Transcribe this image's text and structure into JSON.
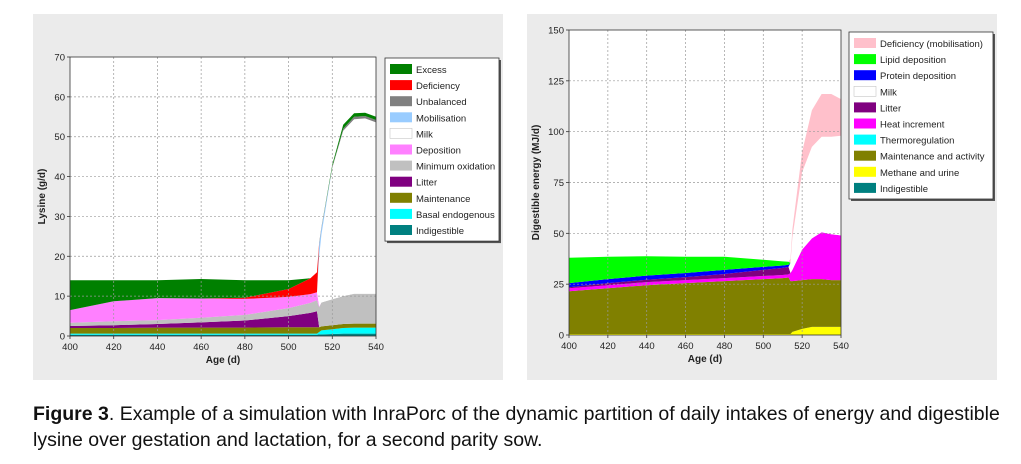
{
  "caption": {
    "label": "Figure 3",
    "text": ". Example of a simulation with InraPorc of the dynamic partition of daily intakes of energy and digestible lysine over gestation and lactation, for a second parity sow."
  },
  "chart_data": [
    {
      "type": "area",
      "stacked": true,
      "xlabel": "Age (d)",
      "ylabel": "Lysine (g/d)",
      "xlim": [
        400,
        540
      ],
      "ylim": [
        0,
        70
      ],
      "xticks": [
        400,
        420,
        440,
        460,
        480,
        500,
        520,
        540
      ],
      "yticks": [
        0,
        10,
        20,
        30,
        40,
        50,
        60,
        70
      ],
      "grid": true,
      "legend_position": "top-right",
      "x": [
        400,
        420,
        440,
        460,
        480,
        500,
        510,
        513,
        514,
        515,
        520,
        525,
        530,
        535,
        540
      ],
      "series": [
        {
          "name": "Indigestible",
          "color": "#008080",
          "values": [
            0.3,
            0.3,
            0.3,
            0.3,
            0.3,
            0.3,
            0.3,
            0.3,
            0.4,
            0.4,
            0.5,
            0.6,
            0.6,
            0.6,
            0.6
          ]
        },
        {
          "name": "Basal endogenous",
          "color": "#00ffff",
          "values": [
            0.3,
            0.3,
            0.3,
            0.3,
            0.3,
            0.3,
            0.3,
            0.3,
            0.6,
            1.0,
            1.2,
            1.4,
            1.5,
            1.5,
            1.5
          ]
        },
        {
          "name": "Maintenance",
          "color": "#808000",
          "values": [
            1.4,
            1.4,
            1.5,
            1.5,
            1.5,
            1.6,
            1.6,
            1.6,
            1.2,
            1.0,
            1.0,
            1.0,
            1.0,
            1.0,
            1.0
          ]
        },
        {
          "name": "Litter",
          "color": "#800080",
          "values": [
            0.5,
            0.7,
            0.9,
            1.3,
            1.8,
            2.8,
            3.6,
            4.0,
            0.0,
            0.0,
            0.0,
            0.0,
            0.0,
            0.0,
            0.0
          ]
        },
        {
          "name": "Minimum oxidation",
          "color": "#c0c0c0",
          "values": [
            0.8,
            1.0,
            1.0,
            1.2,
            1.4,
            2.0,
            2.5,
            2.8,
            5.0,
            6.0,
            6.5,
            7.0,
            7.5,
            7.5,
            7.5
          ]
        },
        {
          "name": "Deposition",
          "color": "#ff80ff",
          "values": [
            3.2,
            5.0,
            5.5,
            4.8,
            4.0,
            2.8,
            2.2,
            2.0,
            0.2,
            0.0,
            0.0,
            0.0,
            0.0,
            0.0,
            0.0
          ]
        },
        {
          "name": "Milk",
          "color": "#ffffff",
          "values": [
            0,
            0,
            0,
            0,
            0,
            0,
            0,
            0,
            12.6,
            17.0,
            33.0,
            41.5,
            43.8,
            44.0,
            43.0
          ]
        },
        {
          "name": "Mobilisation",
          "color": "#99ccff",
          "values": [
            0,
            0,
            0,
            0,
            0,
            0,
            0,
            0,
            3.0,
            1.6,
            0.0,
            0.0,
            0.0,
            0.0,
            0.0
          ]
        },
        {
          "name": "Unbalanced",
          "color": "#808080",
          "values": [
            0,
            0,
            0,
            0,
            0,
            0,
            0,
            0,
            0.5,
            0.3,
            0.3,
            0.5,
            0.6,
            0.6,
            0.6
          ]
        },
        {
          "name": "Deficiency",
          "color": "#ff0000",
          "values": [
            0,
            0,
            0,
            0,
            0.3,
            2.0,
            4.0,
            5.0,
            0.0,
            0.0,
            0.0,
            0.0,
            0.0,
            0.0,
            0.0
          ]
        },
        {
          "name": "Excess",
          "color": "#008000",
          "values": [
            7.5,
            5.3,
            4.5,
            4.9,
            4.4,
            2.2,
            0.0,
            0.0,
            0.0,
            0.0,
            0.5,
            1.0,
            0.9,
            0.8,
            0.8
          ]
        }
      ]
    },
    {
      "type": "area",
      "stacked": true,
      "xlabel": "Age (d)",
      "ylabel": "Digestible energy (MJ/d)",
      "xlim": [
        400,
        540
      ],
      "ylim": [
        0,
        150
      ],
      "xticks": [
        400,
        420,
        440,
        460,
        480,
        500,
        520,
        540
      ],
      "yticks": [
        0,
        25,
        50,
        75,
        100,
        125,
        150
      ],
      "grid": true,
      "legend_position": "top-right",
      "x": [
        400,
        420,
        440,
        460,
        480,
        500,
        510,
        513,
        514,
        515,
        520,
        525,
        530,
        535,
        540
      ],
      "series": [
        {
          "name": "Indigestible",
          "color": "#008080",
          "values": [
            0,
            0,
            0,
            0,
            0,
            0,
            0,
            0,
            0,
            0,
            0,
            0,
            0,
            0,
            0
          ]
        },
        {
          "name": "Methane and urine",
          "color": "#ffff00",
          "values": [
            0.5,
            0.5,
            0.5,
            0.5,
            0.5,
            0.5,
            0.5,
            0.5,
            0.5,
            1.5,
            3.0,
            4.0,
            4.0,
            4.0,
            4.0
          ]
        },
        {
          "name": "Maintenance and activity",
          "color": "#808000",
          "values": [
            21.0,
            22.5,
            24.0,
            25.0,
            26.0,
            27.0,
            27.5,
            27.8,
            26.0,
            25.0,
            24.0,
            23.5,
            23.5,
            23.0,
            23.0
          ]
        },
        {
          "name": "Thermoregulation",
          "color": "#00ffff",
          "values": [
            0,
            0,
            0,
            0,
            0,
            0,
            0,
            0,
            0,
            0,
            0,
            0,
            0,
            0,
            0
          ]
        },
        {
          "name": "Heat increment",
          "color": "#ff00ff",
          "values": [
            1.5,
            1.5,
            1.5,
            1.5,
            1.5,
            1.5,
            1.5,
            1.5,
            4.0,
            5.5,
            15.0,
            20.0,
            23.0,
            22.5,
            22.0
          ]
        },
        {
          "name": "Litter",
          "color": "#800080",
          "values": [
            0.5,
            1.0,
            1.2,
            1.5,
            2.0,
            3.0,
            3.5,
            3.7,
            0,
            0,
            0,
            0,
            0,
            0,
            0
          ]
        },
        {
          "name": "Milk",
          "color": "#ffffff",
          "values": [
            0,
            0,
            0,
            0,
            0,
            0,
            0,
            0,
            5.0,
            16.0,
            38.0,
            45.0,
            47.0,
            48.0,
            49.0
          ]
        },
        {
          "name": "Protein deposition",
          "color": "#0000ff",
          "values": [
            2.0,
            2.0,
            2.0,
            2.0,
            2.0,
            1.5,
            1.2,
            1.0,
            0,
            0,
            0,
            0,
            0,
            0,
            0
          ]
        },
        {
          "name": "Lipid deposition",
          "color": "#00ff00",
          "values": [
            12.5,
            11.0,
            9.5,
            8.0,
            6.5,
            3.5,
            2.0,
            1.5,
            0,
            0,
            0,
            0,
            0,
            0,
            0
          ]
        },
        {
          "name": "Deficiency (mobilisation)",
          "color": "#ffc0cb",
          "values": [
            0,
            0,
            0,
            0,
            0,
            0,
            0,
            0,
            2.0,
            4.0,
            10.0,
            18.0,
            21.0,
            21.0,
            18.0
          ]
        }
      ]
    }
  ]
}
